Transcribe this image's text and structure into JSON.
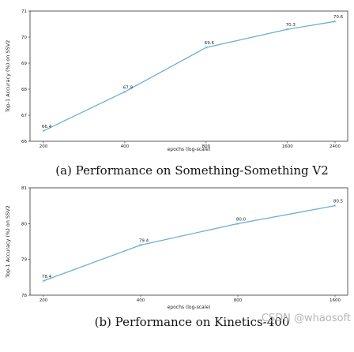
{
  "chart_data": [
    {
      "type": "line",
      "caption": "(a) Performance on Something-Something V2",
      "xlabel": "epochs (log-scale)",
      "ylabel": "Top-1 Accuracy (%) on SSV2",
      "xscale": "log",
      "x": [
        200,
        400,
        800,
        1600,
        2400
      ],
      "x_ticks": [
        "200",
        "400",
        "800",
        "1600",
        "2400"
      ],
      "y_ticks": [
        "66",
        "67",
        "68",
        "69",
        "70",
        "71"
      ],
      "ylim": [
        66,
        71
      ],
      "series": [
        {
          "values": [
            66.4,
            67.9,
            69.6,
            70.3,
            70.6
          ],
          "labels": [
            "66.4",
            "67.9",
            "69.6",
            "70.3",
            "70.6"
          ]
        }
      ],
      "line_color": "#6baed6"
    },
    {
      "type": "line",
      "caption": "(b) Performance on Kinetics-400",
      "xlabel": "epochs (log-scale)",
      "ylabel": "Top-1 Accuracy (%) on SSV2",
      "xscale": "log",
      "x": [
        200,
        400,
        800,
        1600
      ],
      "x_ticks": [
        "200",
        "400",
        "800",
        "1600"
      ],
      "y_ticks": [
        "78",
        "79",
        "80",
        "81"
      ],
      "ylim": [
        78,
        81
      ],
      "series": [
        {
          "values": [
            78.4,
            79.4,
            80.0,
            80.5
          ],
          "labels": [
            "78.4",
            "79.4",
            "80.0",
            "80.5"
          ]
        }
      ],
      "line_color": "#6baed6"
    }
  ],
  "watermark": "CSDN @whaosoft"
}
